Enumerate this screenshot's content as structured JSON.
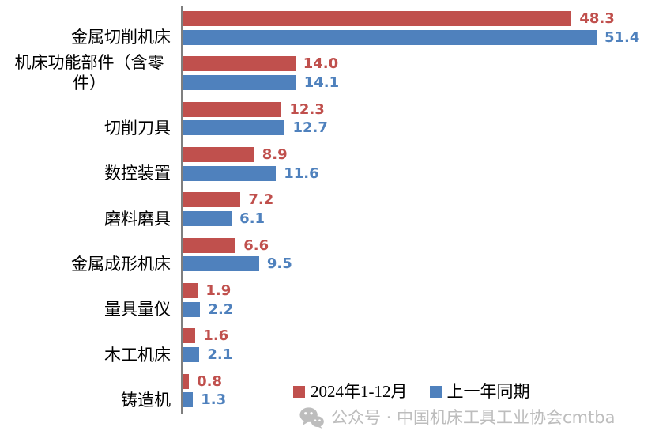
{
  "chart_data": {
    "type": "bar",
    "orientation": "horizontal",
    "title": "",
    "xlabel": "",
    "ylabel": "",
    "xlim": [
      0,
      55
    ],
    "grid": false,
    "value_labels_shown": true,
    "legend_position": "bottom-right",
    "axis_line_color": "#7f7f7f",
    "categories": [
      "金属切削机床",
      "机床功能部件（含零件）",
      "切削刀具",
      "数控装置",
      "磨料磨具",
      "金属成形机床",
      "量具量仪",
      "木工机床",
      "铸造机"
    ],
    "category_label_lines": [
      [
        "金属切削机床"
      ],
      [
        "机床功能部件（含零",
        "件）"
      ],
      [
        "切削刀具"
      ],
      [
        "数控装置"
      ],
      [
        "磨料磨具"
      ],
      [
        "金属成形机床"
      ],
      [
        "量具量仪"
      ],
      [
        "木工机床"
      ],
      [
        "铸造机"
      ]
    ],
    "series": [
      {
        "name": "2024年1-12月",
        "color": "#c0504d",
        "values": [
          48.3,
          14.0,
          12.3,
          8.9,
          7.2,
          6.6,
          1.9,
          1.6,
          0.8
        ],
        "labels": [
          "48.3",
          "14.0",
          "12.3",
          "8.9",
          "7.2",
          "6.6",
          "1.9",
          "1.6",
          "0.8"
        ]
      },
      {
        "name": "上一年同期",
        "color": "#4f81bd",
        "values": [
          51.4,
          14.1,
          12.7,
          11.6,
          6.1,
          9.5,
          2.2,
          2.1,
          1.3
        ],
        "labels": [
          "51.4",
          "14.1",
          "12.7",
          "11.6",
          "6.1",
          "9.5",
          "2.2",
          "2.1",
          "1.3"
        ]
      }
    ]
  },
  "legend": {
    "items": [
      {
        "label": "2024年1-12月",
        "color": "#c0504d"
      },
      {
        "label": "上一年同期",
        "color": "#4f81bd"
      }
    ]
  },
  "watermark": {
    "icon": "wechat-icon",
    "text": "公众号 · 中国机床工具工业协会cmtba",
    "color": "#bdbdbd"
  }
}
